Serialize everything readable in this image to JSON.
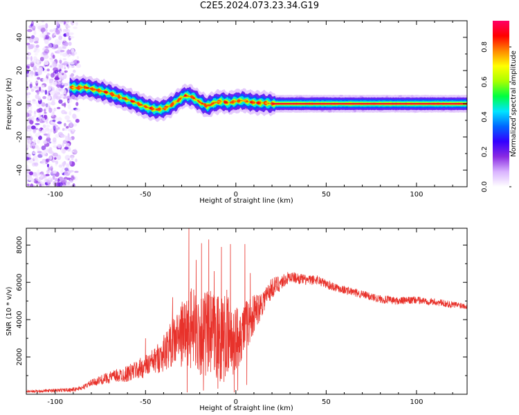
{
  "figure": {
    "title": "C2E5.2024.073.23.34.G19"
  },
  "chart_data": [
    {
      "type": "heatmap",
      "xlabel": "Height of straight line (km)",
      "ylabel": "Frequency (Hz)",
      "xlim": [
        -116,
        128
      ],
      "ylim": [
        -50,
        50
      ],
      "x_ticks": [
        "-100",
        "-50",
        "0",
        "50",
        "100"
      ],
      "x_tick_values": [
        -100,
        -50,
        0,
        50,
        100
      ],
      "y_ticks": [
        "-40",
        "-20",
        "0",
        "20",
        "40"
      ],
      "y_tick_values": [
        -40,
        -20,
        0,
        20,
        40
      ],
      "colorbar": {
        "label": "Normalized spectral amplitude",
        "range": [
          0,
          0.95
        ],
        "ticks": [
          "0.0",
          "0.2",
          "0.4",
          "0.6",
          "0.8"
        ],
        "tick_values": [
          0,
          0.2,
          0.4,
          0.6,
          0.8
        ],
        "colormap": [
          "#ffffff",
          "#d9b3ff",
          "#8a2be2",
          "#3300ff",
          "#0066ff",
          "#00e5ff",
          "#00ff40",
          "#aaff00",
          "#ffff00",
          "#ff8800",
          "#ff0000",
          "#ff0066"
        ]
      },
      "noise_region": {
        "x_range": [
          -116,
          -86
        ],
        "y_range": [
          -50,
          50
        ]
      },
      "ridge": {
        "x": [
          -92,
          -88,
          -84,
          -80,
          -76,
          -72,
          -68,
          -64,
          -60,
          -56,
          -52,
          -48,
          -44,
          -40,
          -36,
          -32,
          -28,
          -24,
          -20,
          -16,
          -12,
          -8,
          -4,
          0,
          4,
          8,
          12,
          16,
          20,
          128
        ],
        "y": [
          10,
          9.5,
          10,
          9,
          8,
          7,
          5.5,
          4,
          2.5,
          1,
          -1,
          -2.5,
          -3.5,
          -3,
          -1,
          2,
          5,
          4,
          1,
          -1.5,
          0.5,
          1.5,
          0.5,
          1.5,
          2,
          1,
          0.5,
          0.5,
          0,
          0
        ],
        "peak_amplitude": 0.9
      }
    },
    {
      "type": "line",
      "xlabel": "Height of straight line (km)",
      "ylabel": "SNR (10 * v/v)",
      "xlim": [
        -116,
        128
      ],
      "ylim": [
        0,
        8900
      ],
      "x_ticks": [
        "-100",
        "-50",
        "0",
        "50",
        "100"
      ],
      "x_tick_values": [
        -100,
        -50,
        0,
        50,
        100
      ],
      "y_ticks": [
        "2000",
        "4000",
        "6000",
        "8000"
      ],
      "y_tick_values": [
        2000,
        4000,
        6000,
        8000
      ],
      "line_color": "#e8322b",
      "envelope": {
        "x": [
          -116,
          -100,
          -90,
          -85,
          -80,
          -70,
          -60,
          -50,
          -45,
          -40,
          -35,
          -30,
          -25,
          -20,
          -15,
          -10,
          -5,
          0,
          5,
          10,
          15,
          20,
          25,
          30,
          40,
          45,
          50,
          60,
          70,
          80,
          90,
          100,
          110,
          120,
          128
        ],
        "y": [
          150,
          200,
          250,
          350,
          600,
          900,
          1100,
          1500,
          1800,
          2200,
          2800,
          3200,
          3500,
          3300,
          3200,
          3100,
          2900,
          3000,
          3600,
          4300,
          5000,
          5700,
          6000,
          6300,
          6100,
          6150,
          5900,
          5600,
          5350,
          5100,
          5000,
          5050,
          4950,
          4800,
          4750
        ]
      },
      "noise": {
        "x": [
          -116,
          -85,
          -60,
          -45,
          -35,
          -25,
          -15,
          -5,
          0,
          15,
          30,
          60,
          128
        ],
        "amplitude": [
          60,
          120,
          450,
          700,
          1300,
          2200,
          2400,
          2400,
          1800,
          700,
          300,
          230,
          180
        ]
      },
      "spikes": [
        {
          "x": -26,
          "y": 8900
        },
        {
          "x": -25,
          "y": 5500
        },
        {
          "x": -22,
          "y": 7200
        },
        {
          "x": -19,
          "y": 8100
        },
        {
          "x": -15,
          "y": 8300
        },
        {
          "x": -12,
          "y": 6600
        },
        {
          "x": -8,
          "y": 7900
        },
        {
          "x": -5,
          "y": 5600
        },
        {
          "x": -3,
          "y": 8050
        },
        {
          "x": 5,
          "y": 8050
        },
        {
          "x": 8,
          "y": 6500
        },
        {
          "x": -30,
          "y": 4500
        },
        {
          "x": -50,
          "y": 3000
        },
        {
          "x": -35,
          "y": 5200
        }
      ],
      "dips": [
        {
          "x": -27,
          "y": 100
        },
        {
          "x": -18,
          "y": 200
        },
        {
          "x": -10,
          "y": 300
        },
        {
          "x": -1,
          "y": 100
        },
        {
          "x": 1,
          "y": 200
        },
        {
          "x": 6,
          "y": 500
        }
      ]
    }
  ]
}
